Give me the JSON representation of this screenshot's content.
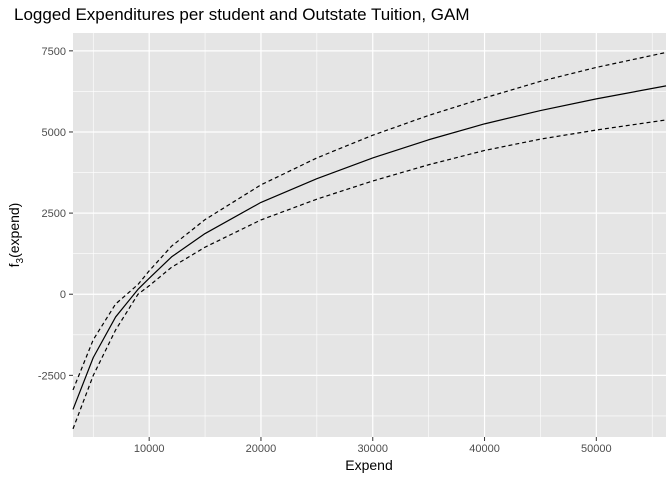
{
  "chart_data": {
    "type": "line",
    "title": "Logged Expenditures per student and Outstate Tuition, GAM",
    "xlabel": "Expend",
    "ylabel": {
      "base": "f",
      "subscript": "3",
      "suffix": "(expend)"
    },
    "xlim": [
      3186,
      56233
    ],
    "ylim": [
      -4400,
      8050
    ],
    "x_ticks": [
      10000,
      20000,
      30000,
      40000,
      50000
    ],
    "x_tick_labels": [
      "10000",
      "20000",
      "30000",
      "40000",
      "50000"
    ],
    "y_ticks": [
      -2500,
      0,
      2500,
      5000,
      7500
    ],
    "y_tick_labels": [
      "-2500",
      "0",
      "2500",
      "5000",
      "7500"
    ],
    "grid": true,
    "panel_background": "#e5e5e5",
    "grid_color": "#ffffff",
    "series": [
      {
        "role": "fit",
        "line_style": "solid",
        "color": "#000000",
        "x": [
          3186,
          5000,
          7000,
          9000,
          10000,
          12000,
          15000,
          20000,
          25000,
          30000,
          35000,
          40000,
          45000,
          50000,
          56233
        ],
        "values": [
          -3550,
          -1950,
          -700,
          150,
          490,
          1150,
          1870,
          2830,
          3560,
          4200,
          4760,
          5250,
          5660,
          6020,
          6420
        ]
      },
      {
        "role": "upper",
        "line_style": "dashed",
        "color": "#000000",
        "x": [
          3186,
          5000,
          7000,
          9000,
          10000,
          12000,
          15000,
          20000,
          25000,
          30000,
          35000,
          40000,
          45000,
          50000,
          56233
        ],
        "values": [
          -2950,
          -1400,
          -300,
          300,
          720,
          1480,
          2300,
          3370,
          4200,
          4900,
          5510,
          6050,
          6560,
          6990,
          7450
        ]
      },
      {
        "role": "lower",
        "line_style": "dashed",
        "color": "#000000",
        "x": [
          3186,
          5000,
          7000,
          9000,
          10000,
          12000,
          15000,
          20000,
          25000,
          30000,
          35000,
          40000,
          45000,
          50000,
          56233
        ],
        "values": [
          -4150,
          -2500,
          -1100,
          0,
          260,
          830,
          1450,
          2290,
          2930,
          3490,
          3990,
          4430,
          4780,
          5060,
          5370
        ]
      }
    ]
  }
}
